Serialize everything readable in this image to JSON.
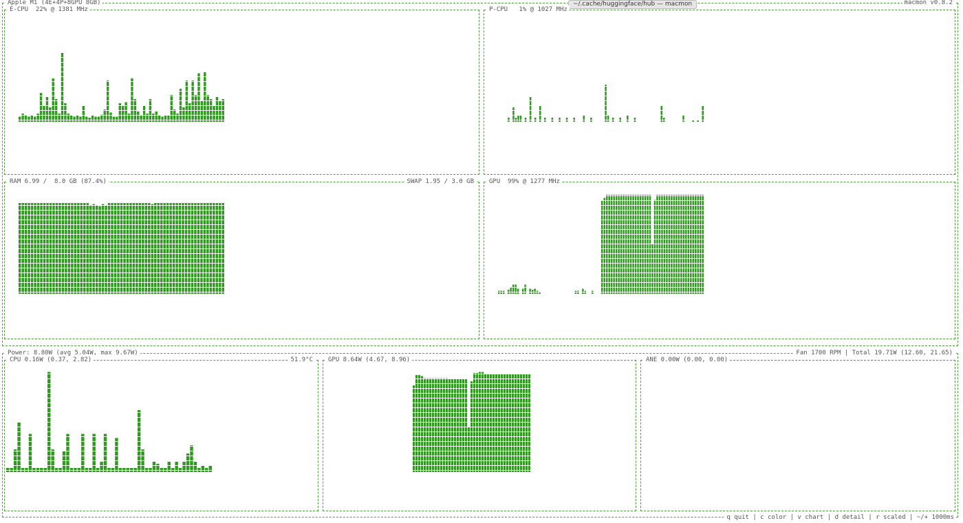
{
  "window": {
    "title": "~/.cache/huggingface/hub — macmon"
  },
  "header": {
    "left": "Apple M1 (4E+4P+8GPU 8GB)",
    "right": "macmon v0.8.2"
  },
  "panels": [
    {
      "label": "E-CPU  22% @ 1381 MHz",
      "values": [
        5,
        8,
        6,
        5,
        6,
        5,
        8,
        28,
        16,
        24,
        14,
        42,
        22,
        8,
        67,
        18,
        8,
        6,
        5,
        6,
        5,
        16,
        5,
        4,
        6,
        5,
        5,
        7,
        12,
        40,
        9,
        5,
        5,
        18,
        16,
        19,
        8,
        42,
        22,
        10,
        6,
        16,
        8,
        22,
        8,
        10,
        6,
        5,
        6,
        6,
        26,
        12,
        8,
        32,
        14,
        40,
        18,
        40,
        26,
        47,
        20,
        48,
        26,
        22,
        16,
        24,
        20,
        22
      ]
    },
    {
      "label": "P-CPU   1% @ 1027 MHz",
      "values": [
        0,
        0,
        0,
        0,
        4,
        0,
        14,
        4,
        6,
        6,
        0,
        4,
        0,
        24,
        0,
        4,
        0,
        16,
        0,
        4,
        0,
        0,
        4,
        0,
        0,
        4,
        0,
        0,
        4,
        0,
        0,
        4,
        0,
        0,
        0,
        6,
        0,
        0,
        4,
        0,
        0,
        0,
        0,
        0,
        36,
        6,
        0,
        4,
        0,
        0,
        4,
        0,
        0,
        6,
        0,
        0,
        4,
        0,
        0,
        0,
        0,
        0,
        0,
        0,
        0,
        0,
        0,
        16,
        4,
        0,
        0,
        0,
        0,
        0,
        0,
        0,
        6,
        0,
        0,
        0,
        2,
        0,
        2,
        0,
        16
      ]
    },
    {
      "label": "RAM 6.99 /  8.0 GB (87.4%)",
      "label_right": "SWAP 1.95 / 3.0 GB",
      "values": [
        88,
        88,
        88,
        88,
        88,
        88,
        88,
        88,
        88,
        88,
        88,
        88,
        88,
        88,
        88,
        88,
        88,
        88,
        88,
        88,
        88,
        88,
        88,
        86,
        87,
        86,
        85,
        87,
        86,
        88,
        88,
        88,
        88,
        88,
        88,
        88,
        88,
        88,
        88,
        88,
        88,
        88,
        88,
        87,
        88,
        88,
        88,
        88,
        88,
        88,
        88,
        88,
        88,
        88,
        88,
        88,
        88,
        88,
        88,
        88,
        88,
        88,
        88,
        88,
        88,
        88,
        88
      ]
    },
    {
      "label": "GPU  99% @ 1277 MHz",
      "values": [
        3,
        3,
        3,
        0,
        4,
        6,
        9,
        9,
        5,
        0,
        5,
        9,
        0,
        5,
        4,
        5,
        3,
        2,
        0,
        0,
        0,
        0,
        0,
        0,
        0,
        0,
        0,
        0,
        0,
        0,
        0,
        0,
        3,
        3,
        0,
        5,
        3,
        0,
        0,
        3,
        0,
        0,
        0,
        90,
        93,
        96,
        96,
        96,
        96,
        96,
        96,
        96,
        96,
        96,
        96,
        96,
        96,
        96,
        96,
        96,
        96,
        96,
        96,
        96,
        48,
        91,
        96,
        96,
        96,
        96,
        96,
        96,
        96,
        96,
        96,
        96,
        96,
        96,
        96,
        96,
        96,
        96,
        96,
        96,
        96,
        96
      ]
    }
  ],
  "power": {
    "left": "Power: 8.80W (avg 5.04W, max 9.67W)",
    "right": "Fan 1700 RPM | Total 19.71W (12.60, 21.65)",
    "panels": [
      {
        "label": "CPU 0.16W (0.37, 2.82)",
        "label_right": "51.9°C",
        "values": [
          4,
          4,
          22,
          48,
          4,
          4,
          37,
          4,
          4,
          4,
          4,
          97,
          22,
          4,
          4,
          20,
          37,
          4,
          4,
          4,
          37,
          4,
          4,
          37,
          4,
          10,
          37,
          4,
          4,
          33,
          4,
          4,
          4,
          4,
          4,
          60,
          22,
          4,
          4,
          10,
          8,
          4,
          4,
          10,
          4,
          10,
          4,
          10,
          18,
          26,
          10,
          4,
          6,
          4,
          6
        ]
      },
      {
        "label": "GPU 8.64W (4.67, 8.96)",
        "values": [
          0,
          0,
          0,
          0,
          0,
          0,
          0,
          0,
          0,
          0,
          0,
          0,
          0,
          0,
          0,
          0,
          0,
          0,
          0,
          0,
          0,
          0,
          0,
          0,
          0,
          0,
          0,
          0,
          0,
          0,
          0,
          0,
          84,
          94,
          94,
          93,
          91,
          91,
          91,
          91,
          91,
          91,
          91,
          91,
          91,
          90,
          90,
          90,
          90,
          90,
          90,
          90,
          44,
          88,
          96,
          96,
          97,
          97,
          95,
          95,
          95,
          95,
          95,
          95,
          95,
          95,
          95,
          95,
          95,
          95,
          95,
          95,
          95,
          95,
          95
        ]
      },
      {
        "label": "ANE 0.00W (0.00, 0.00)"
      }
    ]
  },
  "footer": "q quit | c color | v chart | d detail | r scaled | ~/+ 1000ms"
}
